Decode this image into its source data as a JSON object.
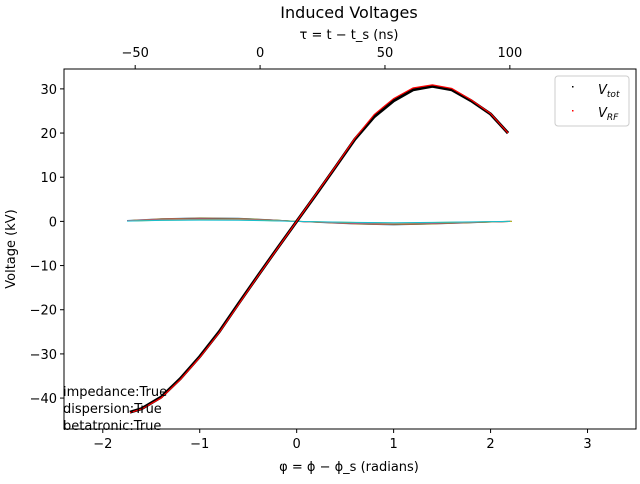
{
  "chart_data": {
    "type": "line",
    "title": "Induced Voltages",
    "xlabel": "φ = ϕ − ϕ_s (radians)",
    "ylabel": "Voltage (kV)",
    "top_xlabel": "τ = t − t_s (ns)",
    "xlim": [
      -2.4,
      3.5
    ],
    "ylim": [
      -47,
      34.5
    ],
    "top_xlim": [
      -78.5,
      150.5
    ],
    "x_ticks": [
      -2,
      -1,
      0,
      1,
      2,
      3
    ],
    "x_tick_labels": [
      "−2",
      "−1",
      "0",
      "1",
      "2",
      "3"
    ],
    "y_ticks": [
      -40,
      -30,
      -20,
      -10,
      0,
      10,
      20,
      30
    ],
    "y_tick_labels": [
      "−40",
      "−30",
      "−20",
      "−10",
      "0",
      "10",
      "20",
      "30"
    ],
    "top_ticks": [
      -50,
      0,
      50,
      100
    ],
    "top_tick_labels": [
      "−50",
      "0",
      "50",
      "100"
    ],
    "grid": false,
    "legend_position": "top-right",
    "legend": [
      {
        "label_main": "V",
        "label_sub": "tot",
        "color": "#000000"
      },
      {
        "label_main": "V",
        "label_sub": "RF",
        "color": "#ff0000"
      }
    ],
    "series": [
      {
        "name": "V_tot",
        "color": "#000000",
        "x": [
          -1.72,
          -1.6,
          -1.4,
          -1.2,
          -1.0,
          -0.8,
          -0.6,
          -0.4,
          -0.2,
          0.0,
          0.2,
          0.4,
          0.6,
          0.8,
          1.0,
          1.2,
          1.4,
          1.6,
          1.8,
          2.0,
          2.18
        ],
        "y": [
          -43.2,
          -42.4,
          -39.8,
          -35.6,
          -30.6,
          -25.0,
          -18.6,
          -12.3,
          -6.1,
          0.0,
          6.1,
          12.3,
          18.6,
          23.7,
          27.3,
          29.8,
          30.6,
          29.8,
          27.3,
          24.3,
          20.0
        ]
      },
      {
        "name": "V_RF",
        "color": "#ff0000",
        "x": [
          -1.72,
          -1.6,
          -1.4,
          -1.2,
          -1.0,
          -0.8,
          -0.6,
          -0.4,
          -0.2,
          0.0,
          0.2,
          0.4,
          0.6,
          0.8,
          1.0,
          1.2,
          1.4,
          1.6,
          1.8,
          2.0,
          2.18
        ],
        "y": [
          -43.3,
          -42.5,
          -40.0,
          -35.8,
          -30.8,
          -25.2,
          -18.8,
          -12.4,
          -6.2,
          0.0,
          6.2,
          12.4,
          18.8,
          24.2,
          27.8,
          30.2,
          30.9,
          30.1,
          27.5,
          24.4,
          20.0
        ]
      }
    ],
    "induced_band": {
      "colors": [
        "#1f77b4",
        "#ff7f0e",
        "#2ca02c",
        "#d62728",
        "#9467bd",
        "#8c564b",
        "#e377c2",
        "#7f7f7f",
        "#bcbd22",
        "#17becf"
      ],
      "x": [
        -1.75,
        -1.4,
        -1.0,
        -0.6,
        -0.3,
        0.0,
        0.3,
        0.6,
        1.0,
        1.4,
        1.8,
        2.2
      ],
      "y": [
        0.2,
        0.6,
        0.8,
        0.7,
        0.4,
        0.0,
        -0.3,
        -0.6,
        -0.8,
        -0.6,
        -0.3,
        0.0
      ]
    }
  },
  "annotations": [
    "impedance:True",
    "dispersion:True",
    "betatronic:True"
  ]
}
